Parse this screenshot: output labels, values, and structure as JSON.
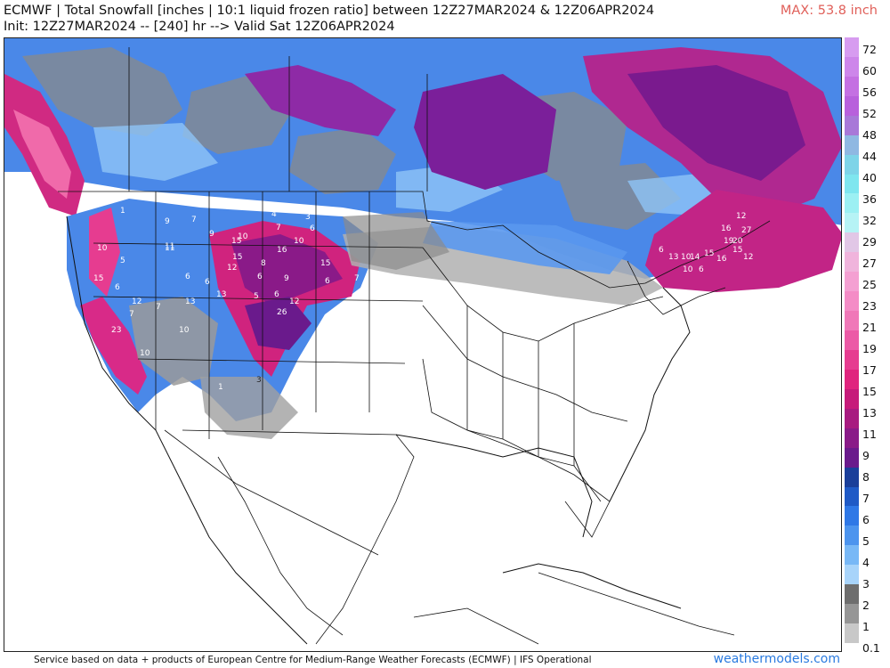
{
  "header": {
    "line1": "ECMWF | Total Snowfall [inches | 10:1 liquid frozen ratio] between 12Z27MAR2024 & 12Z06APR2024",
    "line2": "Init: 12Z27MAR2024 -- [240] hr --> Valid Sat 12Z06APR2024",
    "max": "MAX: 53.8 inch"
  },
  "colorbar": {
    "labels": [
      "72",
      "60",
      "56",
      "52",
      "48",
      "44",
      "40",
      "36",
      "32",
      "29",
      "27",
      "25",
      "23",
      "21",
      "19",
      "17",
      "15",
      "13",
      "11",
      "9",
      "8",
      "7",
      "6",
      "5",
      "4",
      "3",
      "2",
      "1",
      "0.1"
    ],
    "colors": [
      "#d79cf0",
      "#cd86ea",
      "#c470e2",
      "#b860dc",
      "#a878d8",
      "#8fb8e2",
      "#7ed4e8",
      "#7fe6ef",
      "#9cf0f3",
      "#b6f3f5",
      "#e1c7e6",
      "#f0b4dc",
      "#f4a0d2",
      "#f48cc6",
      "#f078b8",
      "#ec5aa6",
      "#e63c90",
      "#e0247e",
      "#c61a7a",
      "#a81a80",
      "#8a1a88",
      "#6a1a8c",
      "#1a3f9a",
      "#1f5ac6",
      "#2f78e6",
      "#4c94ee",
      "#78b8f6",
      "#a8d4fa",
      "#6e6e6e",
      "#969696",
      "#c8c8c8"
    ]
  },
  "map_labels": [
    {
      "t": "1"
    },
    {
      "t": "3"
    },
    {
      "t": "5"
    },
    {
      "t": "6"
    },
    {
      "t": "7"
    },
    {
      "t": "8"
    },
    {
      "t": "9"
    },
    {
      "t": "10"
    },
    {
      "t": "11"
    },
    {
      "t": "12"
    },
    {
      "t": "13"
    },
    {
      "t": "15"
    },
    {
      "t": "16"
    },
    {
      "t": "20"
    },
    {
      "t": "23"
    },
    {
      "t": "26"
    },
    {
      "t": "27"
    },
    {
      "t": "19"
    },
    {
      "t": "14"
    },
    {
      "t": "4"
    }
  ],
  "footer": {
    "credit": "Service based on data + products of European Centre for Medium-Range Weather Forecasts (ECMWF) | IFS Operational",
    "brand": "weathermodels.com"
  }
}
